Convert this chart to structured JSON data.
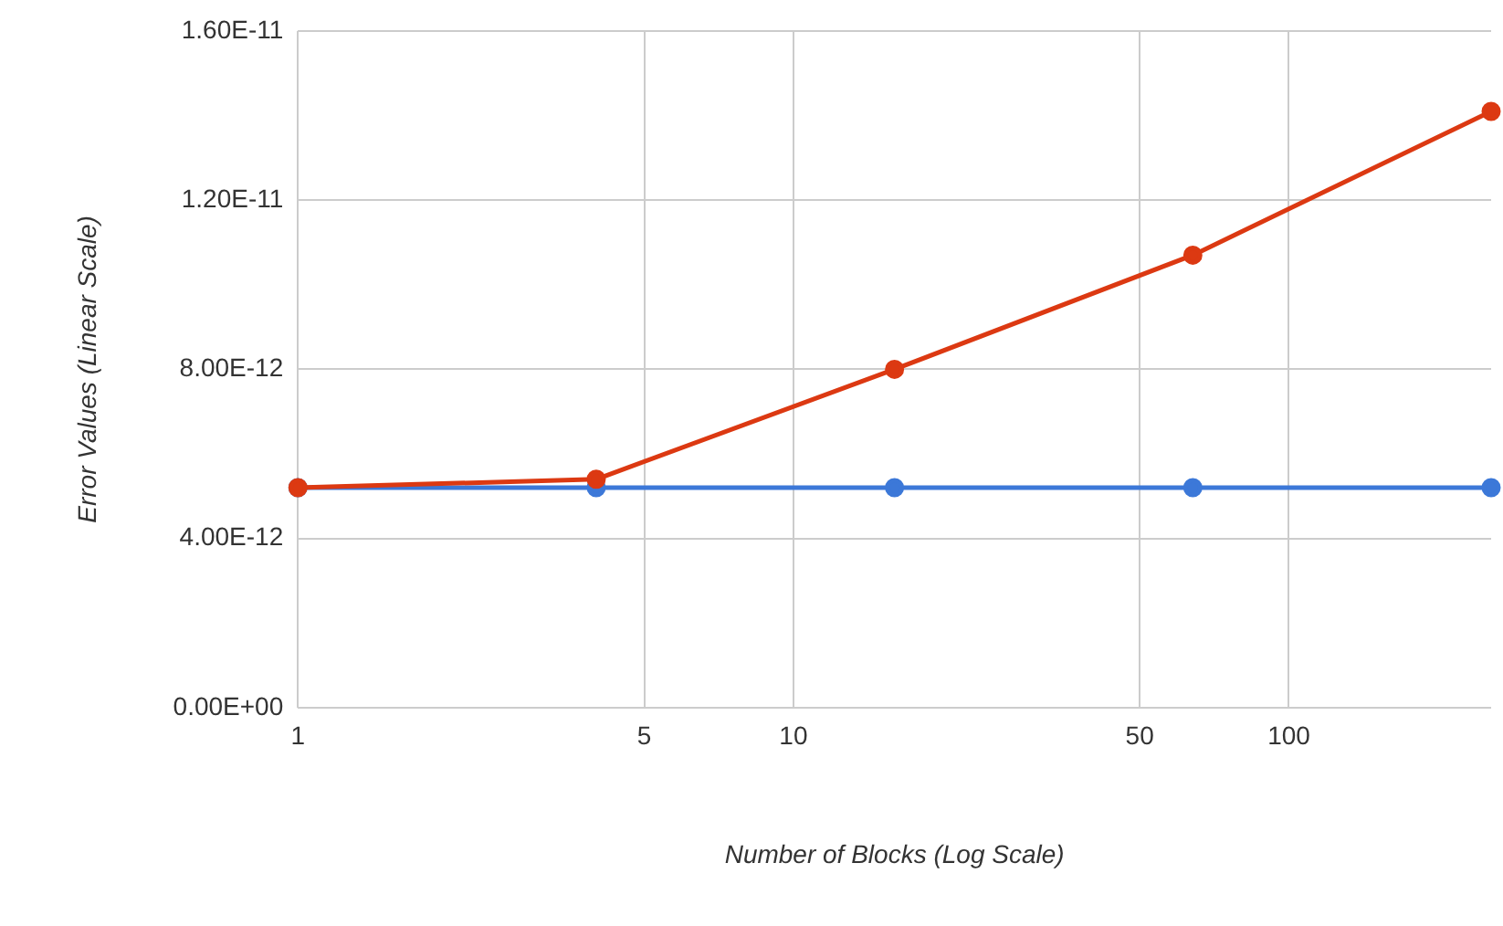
{
  "chart_data": {
    "type": "line",
    "xlabel": "Number of Blocks (Log Scale)",
    "ylabel": "Error Values (Linear Scale)",
    "x": [
      1,
      4,
      16,
      64,
      256
    ],
    "series": [
      {
        "color": "#3c78d8",
        "values": [
          5.2e-12,
          5.2e-12,
          5.2e-12,
          5.2e-12,
          5.2e-12
        ]
      },
      {
        "color": "#dc3912",
        "values": [
          5.2e-12,
          5.4e-12,
          8e-12,
          1.07e-11,
          1.41e-11
        ]
      }
    ],
    "log": "x",
    "xlim": [
      1,
      256
    ],
    "xticks": [
      1,
      5,
      10,
      50,
      100
    ],
    "ylim": [
      0,
      1.6e-11
    ],
    "yticks": [
      {
        "value": 0,
        "label": "0.00E+00"
      },
      {
        "value": 4e-12,
        "label": "4.00E-12"
      },
      {
        "value": 8e-12,
        "label": "8.00E-12"
      },
      {
        "value": 1.2e-11,
        "label": "1.20E-11"
      },
      {
        "value": 1.6e-11,
        "label": "1.60E-11"
      }
    ],
    "grid": true,
    "legend": false,
    "marker": "circle",
    "line_style": "solid"
  }
}
